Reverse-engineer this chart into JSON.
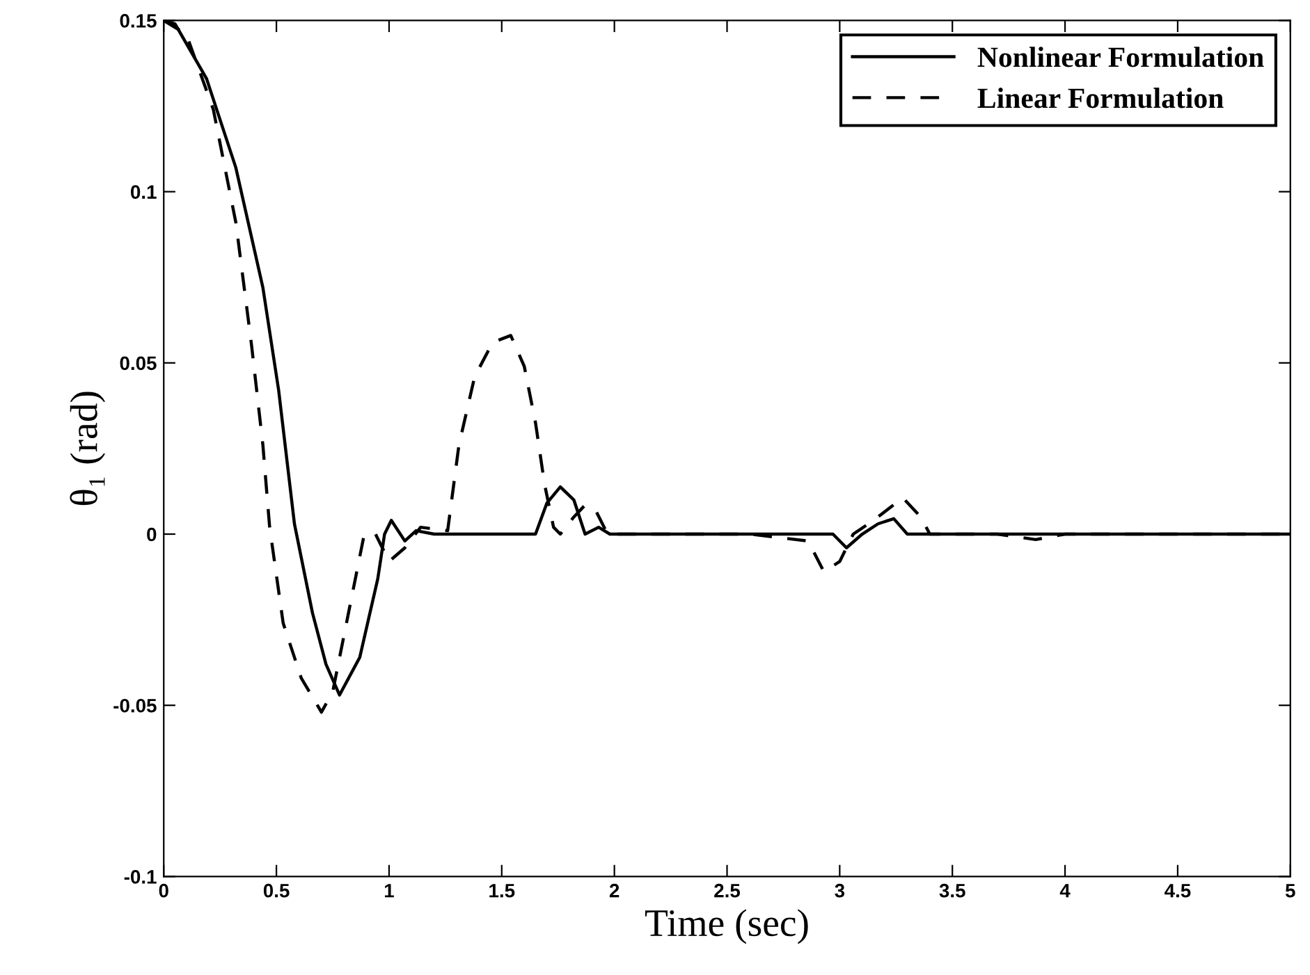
{
  "chart_data": {
    "type": "line",
    "xlabel": "Time (sec)",
    "ylabel": "θ₁ (rad)",
    "xlim": [
      0,
      5
    ],
    "ylim": [
      -0.1,
      0.15
    ],
    "xticks": [
      0,
      0.5,
      1,
      1.5,
      2,
      2.5,
      3,
      3.5,
      4,
      4.5,
      5
    ],
    "yticks": [
      -0.1,
      -0.05,
      0,
      0.05,
      0.1,
      0.15
    ],
    "grid": false,
    "legend": "top right",
    "series": [
      {
        "name": "Nonlinear Formulation",
        "color": "#000000",
        "line_style": "solid",
        "x": [
          0,
          0.05,
          0.19,
          0.32,
          0.44,
          0.51,
          0.58,
          0.66,
          0.72,
          0.78,
          0.87,
          0.95,
          0.98,
          1.01,
          1.07,
          1.12,
          1.2,
          1.4,
          1.65,
          1.7,
          1.76,
          1.82,
          1.87,
          1.93,
          1.98,
          2.2,
          2.6,
          2.97,
          3.03,
          3.1,
          3.17,
          3.24,
          3.3,
          3.5,
          3.7,
          3.9,
          4.1,
          4.3,
          4.5,
          4.7,
          5
        ],
        "values": [
          0.15,
          0.149,
          0.133,
          0.107,
          0.072,
          0.042,
          0.003,
          -0.023,
          -0.038,
          -0.047,
          -0.036,
          -0.013,
          0.0,
          0.004,
          -0.002,
          0.001,
          0,
          0,
          0,
          0.009,
          0.0138,
          0.01,
          0,
          0.002,
          0,
          0,
          0,
          0,
          -0.004,
          0,
          0.003,
          0.0045,
          0,
          0,
          0,
          0,
          0,
          0,
          0,
          0,
          0
        ]
      },
      {
        "name": "Linear Formulation",
        "color": "#000000",
        "line_style": "dashed",
        "x": [
          0,
          0.1,
          0.22,
          0.32,
          0.39,
          0.44,
          0.47,
          0.53,
          0.61,
          0.7,
          0.75,
          0.82,
          0.89,
          0.94,
          1.0,
          1.07,
          1.14,
          1.26,
          1.31,
          1.38,
          1.46,
          1.54,
          1.6,
          1.65,
          1.69,
          1.73,
          1.76,
          1.82,
          1.87,
          1.92,
          1.97,
          2.2,
          2.6,
          2.86,
          2.93,
          3.0,
          3.06,
          3.15,
          3.28,
          3.36,
          3.4,
          3.7,
          3.87,
          4.0,
          4.5,
          5
        ],
        "values": [
          0.15,
          0.146,
          0.124,
          0.091,
          0.055,
          0.026,
          0.002,
          -0.026,
          -0.042,
          -0.052,
          -0.046,
          -0.023,
          0.0,
          0.0,
          -0.008,
          -0.004,
          0.002,
          0.001,
          0.026,
          0.046,
          0.056,
          0.058,
          0.049,
          0.0325,
          0.0146,
          0.002,
          0.0,
          0.005,
          0.0085,
          0.0065,
          0,
          0,
          0,
          -0.002,
          -0.011,
          -0.008,
          0,
          0.004,
          0.0106,
          0.005,
          0,
          0,
          -0.0016,
          0,
          0,
          0
        ]
      }
    ]
  }
}
